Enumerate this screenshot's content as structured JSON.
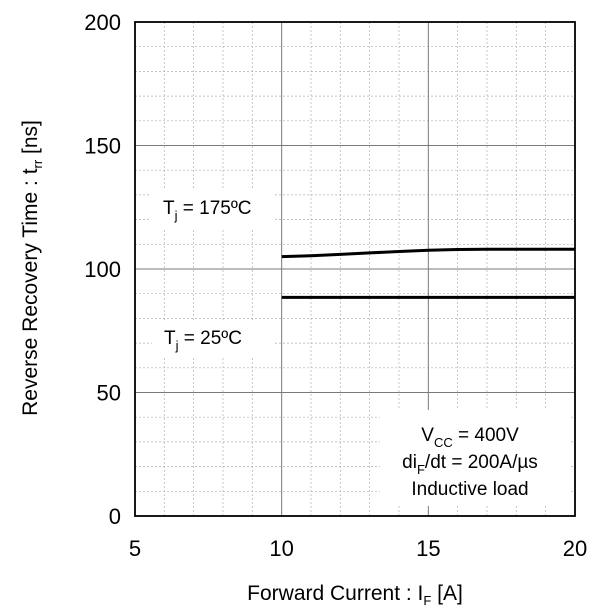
{
  "chart_data": {
    "type": "line",
    "xlabel": "Forward Current : I",
    "xlabel_sub": "F",
    "xlabel_unit": " [A]",
    "ylabel": "Reverse Recovery Time : t",
    "ylabel_sub": "rr",
    "ylabel_unit": " [ns]",
    "xlim": [
      5,
      20
    ],
    "ylim": [
      0,
      200
    ],
    "x_ticks": [
      "5",
      "10",
      "15",
      "20"
    ],
    "y_ticks": [
      "0",
      "50",
      "100",
      "150",
      "200"
    ],
    "grid": "major and minor",
    "series": [
      {
        "x": [
          10,
          11,
          12,
          13,
          14,
          15,
          16,
          17,
          18,
          19,
          20
        ],
        "y": [
          105,
          105.4,
          105.9,
          106.5,
          107.1,
          107.6,
          107.9,
          108,
          108,
          108,
          108
        ],
        "color": "#000000"
      },
      {
        "x": [
          10,
          12.5,
          15,
          17.5,
          20
        ],
        "y": [
          88.5,
          88.5,
          88.5,
          88.5,
          88.5
        ],
        "color": "#000000"
      }
    ],
    "annotations": {
      "tj_high": {
        "main": "T",
        "sub": "j",
        "rest": " = 175ºC"
      },
      "tj_low": {
        "main": "T",
        "sub": "j",
        "rest": " = 25ºC"
      },
      "vcc": {
        "main": "V",
        "sub": "CC",
        "rest": " = 400V"
      },
      "di": {
        "main": "di",
        "sub": "F",
        "rest": "/dt = 200A/µs"
      },
      "load": "Inductive load"
    }
  }
}
